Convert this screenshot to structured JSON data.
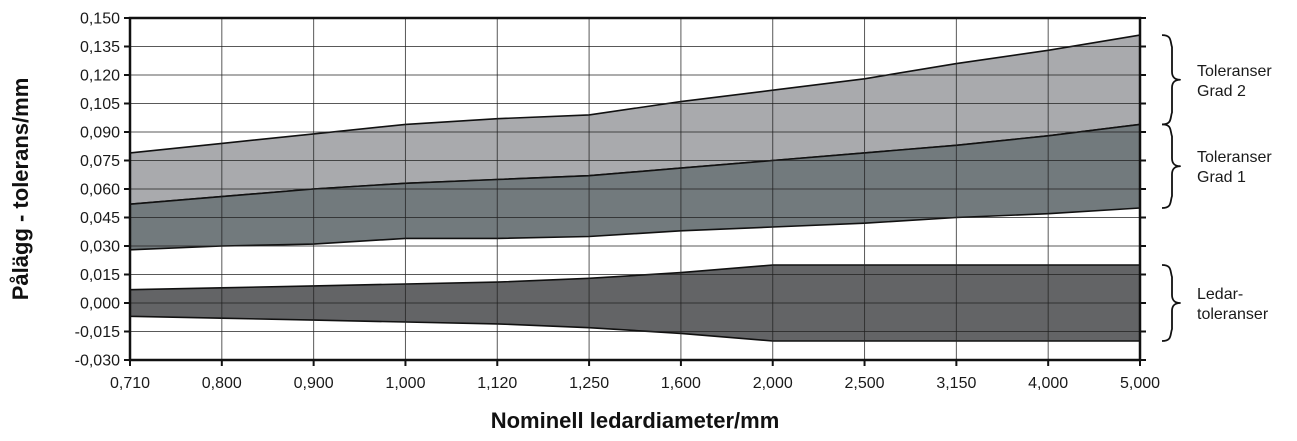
{
  "chart_data": {
    "type": "area",
    "xlabel": "Nominell ledardiameter/mm",
    "ylabel": "Pålägg - tolerans/mm",
    "categories": [
      "0,710",
      "0,800",
      "0,900",
      "1,000",
      "1,120",
      "1,250",
      "1,600",
      "2,000",
      "2,500",
      "3,150",
      "4,000",
      "5,000"
    ],
    "y_ticks": [
      "-0,030",
      "-0,015",
      "0,000",
      "0,015",
      "0,030",
      "0,045",
      "0,060",
      "0,075",
      "0,090",
      "0,105",
      "0,120",
      "0,135",
      "0,150"
    ],
    "ylim": [
      -0.03,
      0.15
    ],
    "grid": true,
    "bands": [
      {
        "label_lines": [
          "Toleranser",
          "Grad 2"
        ],
        "color": "#a9aaad",
        "upper": [
          0.079,
          0.084,
          0.089,
          0.094,
          0.097,
          0.099,
          0.106,
          0.112,
          0.118,
          0.126,
          0.133,
          0.141
        ],
        "lower": [
          0.052,
          0.056,
          0.06,
          0.063,
          0.065,
          0.067,
          0.071,
          0.075,
          0.079,
          0.083,
          0.088,
          0.094
        ]
      },
      {
        "label_lines": [
          "Toleranser",
          "Grad 1"
        ],
        "color": "#727a7d",
        "upper": [
          0.052,
          0.056,
          0.06,
          0.063,
          0.065,
          0.067,
          0.071,
          0.075,
          0.079,
          0.083,
          0.088,
          0.094
        ],
        "lower": [
          0.028,
          0.03,
          0.031,
          0.034,
          0.034,
          0.035,
          0.038,
          0.04,
          0.042,
          0.045,
          0.047,
          0.05
        ]
      },
      {
        "label_lines": [
          "Ledar-",
          "toleranser"
        ],
        "color": "#636466",
        "upper": [
          0.007,
          0.008,
          0.009,
          0.01,
          0.011,
          0.013,
          0.016,
          0.02,
          0.02,
          0.02,
          0.02,
          0.02
        ],
        "lower": [
          -0.007,
          -0.008,
          -0.009,
          -0.01,
          -0.011,
          -0.013,
          -0.016,
          -0.02,
          -0.02,
          -0.02,
          -0.02,
          -0.02
        ]
      }
    ]
  }
}
